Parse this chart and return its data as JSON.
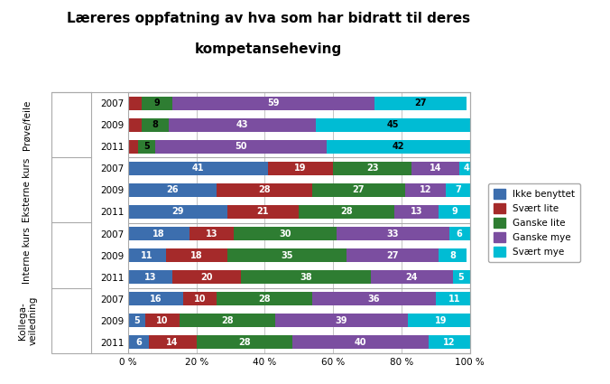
{
  "title_line1": "Læreres oppfatning av hva som har bidratt til deres",
  "title_line2": "kompetanseheving",
  "years": [
    "2007",
    "2009",
    "2011",
    "2007",
    "2009",
    "2011",
    "2007",
    "2009",
    "2011",
    "2007",
    "2009",
    "2011"
  ],
  "group_labels": [
    "Prøve/feile",
    "Eksterne kurs",
    "Interne kurs",
    "Kollega-\nveiledning"
  ],
  "series_labels": [
    "Ikke benyttet",
    "Svært lite",
    "Ganske lite",
    "Ganske mye",
    "Svært mye"
  ],
  "colors": [
    "#3C6EAE",
    "#A52A2A",
    "#2E7D32",
    "#7B4EA0",
    "#00BCD4"
  ],
  "data": [
    [
      0,
      4,
      9,
      59,
      27
    ],
    [
      0,
      4,
      8,
      43,
      45
    ],
    [
      0,
      3,
      5,
      50,
      42
    ],
    [
      41,
      19,
      23,
      14,
      4
    ],
    [
      26,
      28,
      27,
      12,
      7
    ],
    [
      29,
      21,
      28,
      13,
      9
    ],
    [
      18,
      13,
      30,
      33,
      6
    ],
    [
      11,
      18,
      35,
      27,
      8
    ],
    [
      13,
      20,
      38,
      24,
      5
    ],
    [
      16,
      10,
      28,
      36,
      11
    ],
    [
      5,
      10,
      28,
      39,
      19
    ],
    [
      6,
      14,
      28,
      40,
      12
    ]
  ],
  "bar_labels": [
    [
      null,
      null,
      "9",
      "59",
      "27"
    ],
    [
      null,
      null,
      "8",
      "43",
      "45"
    ],
    [
      null,
      null,
      "5",
      "50",
      "42"
    ],
    [
      "41",
      "19",
      "23",
      "14",
      "4"
    ],
    [
      "26",
      "28",
      "27",
      "12",
      "7"
    ],
    [
      "29",
      "21",
      "28",
      "13",
      "9"
    ],
    [
      "18",
      "13",
      "30",
      "33",
      "6"
    ],
    [
      "11",
      "18",
      "35",
      "27",
      "8"
    ],
    [
      "13",
      "20",
      "38",
      "24",
      "5"
    ],
    [
      "16",
      "10",
      "28",
      "36",
      "11"
    ],
    [
      "5",
      "10",
      "28",
      "39",
      "19"
    ],
    [
      "6",
      "14",
      "28",
      "40",
      "12"
    ]
  ],
  "label_text_colors": [
    [
      null,
      null,
      "black",
      "white",
      "black"
    ],
    [
      null,
      null,
      "black",
      "white",
      "black"
    ],
    [
      null,
      null,
      "black",
      "white",
      "black"
    ],
    [
      "white",
      "white",
      "white",
      "white",
      "white"
    ],
    [
      "white",
      "white",
      "white",
      "white",
      "white"
    ],
    [
      "white",
      "white",
      "white",
      "white",
      "white"
    ],
    [
      "white",
      "white",
      "white",
      "white",
      "white"
    ],
    [
      "white",
      "white",
      "white",
      "white",
      "white"
    ],
    [
      "white",
      "white",
      "white",
      "white",
      "white"
    ],
    [
      "white",
      "white",
      "white",
      "white",
      "white"
    ],
    [
      "white",
      "white",
      "white",
      "white",
      "white"
    ],
    [
      "white",
      "white",
      "white",
      "white",
      "white"
    ]
  ],
  "background_color": "#FFFFFF",
  "grid_color": "#BBBBBB",
  "border_color": "#AAAAAA"
}
